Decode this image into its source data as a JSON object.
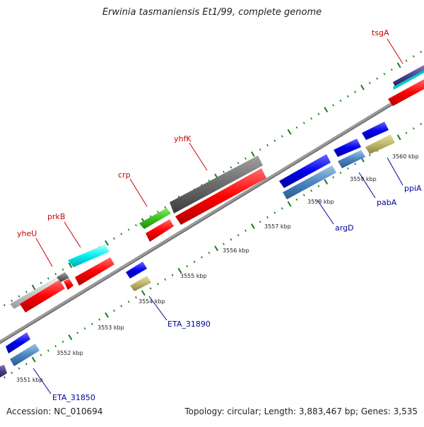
{
  "title": "Erwinia tasmaniensis Et1/99, complete genome",
  "footer": {
    "accession": "Accession: NC_010694",
    "summary": "Topology: circular; Length: 3,883,467 bp; Genes: 3,535"
  },
  "colors": {
    "red_label": "#cc0000",
    "blue_label": "#000099",
    "tick": "#1a7a1a",
    "backbone": "#808080"
  },
  "genes_top": [
    {
      "label": "yheU"
    },
    {
      "label": "prkB"
    },
    {
      "label": "crp"
    },
    {
      "label": "yhfK"
    },
    {
      "label": "tsgA"
    }
  ],
  "genes_bottom": [
    {
      "label": "ETA_31850"
    },
    {
      "label": "ETA_31890"
    },
    {
      "label": "argD"
    },
    {
      "label": "pabA"
    },
    {
      "label": "ppiA"
    }
  ],
  "scale_labels": [
    "3551 kbp",
    "3552 kbp",
    "3553 kbp",
    "3554 kbp",
    "3555 kbp",
    "3556 kbp",
    "3557 kbp",
    "3558 kbp",
    "3559 kbp",
    "3560 kbp"
  ]
}
